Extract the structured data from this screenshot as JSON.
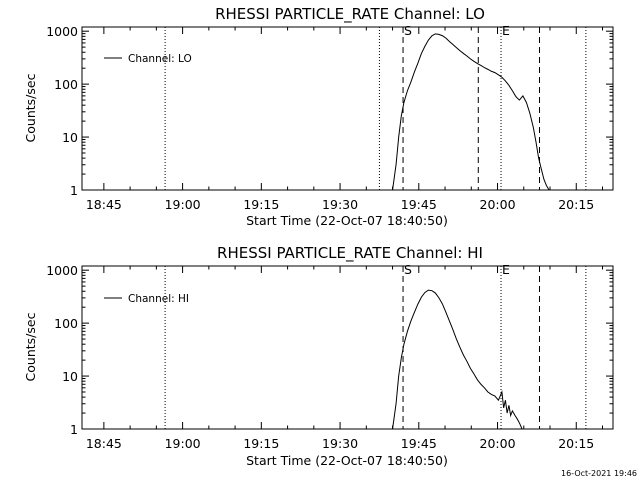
{
  "timestamp": "16-Oct-2021 19:46",
  "chart_data": [
    {
      "type": "line",
      "title": "RHESSI PARTICLE_RATE Channel: LO",
      "xlabel": "Start Time (22-Oct-07 18:40:50)",
      "ylabel": "Counts/sec",
      "y_scale": "log",
      "ylim": [
        1,
        1200
      ],
      "xlim": [
        "18:40:50",
        "20:22:00"
      ],
      "x_tick_labels": [
        "18:45",
        "19:00",
        "19:15",
        "19:30",
        "19:45",
        "20:00",
        "20:15"
      ],
      "y_tick_labels": [
        "1",
        "10",
        "100",
        "1000"
      ],
      "y_tick_values": [
        1,
        10,
        100,
        1000
      ],
      "legend": {
        "position": "top-left",
        "entries": [
          "Channel: LO"
        ]
      },
      "markers": [
        {
          "label": "S",
          "time": "19:42:00",
          "style": "dashed"
        },
        {
          "label": "",
          "time": "19:56:20",
          "style": "dashed"
        },
        {
          "label": "E",
          "time": "20:00:40",
          "style": "dotted"
        },
        {
          "label": "",
          "time": "20:08:00",
          "style": "dashed"
        },
        {
          "label": "",
          "time": "19:37:30",
          "style": "dotted"
        },
        {
          "label": "",
          "time": "18:56:40",
          "style": "dotted"
        },
        {
          "label": "",
          "time": "20:16:50",
          "style": "dotted"
        }
      ],
      "series": [
        {
          "name": "Channel: LO",
          "x": [
            "19:40:00",
            "19:40:40",
            "19:41:10",
            "19:41:40",
            "19:42:10",
            "19:42:50",
            "19:43:30",
            "19:44:10",
            "19:44:50",
            "19:45:30",
            "19:46:10",
            "19:46:50",
            "19:47:30",
            "19:48:10",
            "19:48:50",
            "19:49:30",
            "19:50:10",
            "19:50:50",
            "19:51:30",
            "19:52:10",
            "19:52:50",
            "19:53:30",
            "19:54:10",
            "19:54:50",
            "19:55:30",
            "19:56:10",
            "19:56:50",
            "19:57:30",
            "19:58:10",
            "19:58:50",
            "19:59:30",
            "20:00:10",
            "20:00:50",
            "20:01:30",
            "20:02:10",
            "20:02:50",
            "20:03:30",
            "20:04:10",
            "20:04:50",
            "20:05:30",
            "20:06:10",
            "20:06:50",
            "20:07:20",
            "20:07:50",
            "20:08:20",
            "20:08:50",
            "20:09:20",
            "20:09:50"
          ],
          "y": [
            1,
            3,
            10,
            25,
            45,
            75,
            110,
            170,
            250,
            380,
            520,
            680,
            820,
            890,
            870,
            820,
            740,
            640,
            560,
            490,
            430,
            380,
            340,
            300,
            270,
            245,
            225,
            205,
            190,
            175,
            165,
            150,
            135,
            115,
            95,
            75,
            58,
            50,
            60,
            45,
            28,
            15,
            8,
            4,
            2.5,
            1.6,
            1.2,
            1
          ]
        }
      ]
    },
    {
      "type": "line",
      "title": "RHESSI PARTICLE_RATE Channel: HI",
      "xlabel": "Start Time (22-Oct-07 18:40:50)",
      "ylabel": "Counts/sec",
      "y_scale": "log",
      "ylim": [
        1,
        1200
      ],
      "xlim": [
        "18:40:50",
        "20:22:00"
      ],
      "x_tick_labels": [
        "18:45",
        "19:00",
        "19:15",
        "19:30",
        "19:45",
        "20:00",
        "20:15"
      ],
      "y_tick_labels": [
        "1",
        "10",
        "100",
        "1000"
      ],
      "y_tick_values": [
        1,
        10,
        100,
        1000
      ],
      "legend": {
        "position": "top-left",
        "entries": [
          "Channel: HI"
        ]
      },
      "markers": [
        {
          "label": "S",
          "time": "19:42:00",
          "style": "dashed"
        },
        {
          "label": "E",
          "time": "20:00:40",
          "style": "dotted"
        },
        {
          "label": "",
          "time": "20:08:00",
          "style": "dashed"
        },
        {
          "label": "",
          "time": "18:56:40",
          "style": "dotted"
        },
        {
          "label": "",
          "time": "20:16:50",
          "style": "dotted"
        }
      ],
      "series": [
        {
          "name": "Channel: HI",
          "x": [
            "19:40:00",
            "19:40:40",
            "19:41:10",
            "19:41:40",
            "19:42:10",
            "19:42:50",
            "19:43:30",
            "19:44:10",
            "19:44:50",
            "19:45:30",
            "19:46:10",
            "19:46:50",
            "19:47:30",
            "19:48:10",
            "19:48:50",
            "19:49:30",
            "19:50:10",
            "19:50:50",
            "19:51:30",
            "19:52:10",
            "19:52:50",
            "19:53:30",
            "19:54:10",
            "19:54:50",
            "19:55:30",
            "19:56:10",
            "19:56:50",
            "19:57:30",
            "19:58:10",
            "19:58:50",
            "19:59:30",
            "20:00:10",
            "20:00:50",
            "20:01:10",
            "20:01:30",
            "20:01:50",
            "20:02:10",
            "20:02:30",
            "20:02:50",
            "20:03:20",
            "20:03:40",
            "20:04:00",
            "20:04:20",
            "20:04:40"
          ],
          "y": [
            1,
            3,
            10,
            22,
            40,
            70,
            110,
            160,
            230,
            310,
            380,
            420,
            410,
            370,
            300,
            230,
            160,
            110,
            75,
            50,
            35,
            25,
            19,
            14,
            11,
            8.5,
            7,
            6,
            5,
            4.5,
            4.2,
            3.5,
            5,
            2.5,
            3.5,
            2,
            2.8,
            1.8,
            2.2,
            1.8,
            1.6,
            1.4,
            1.2,
            1
          ]
        }
      ]
    }
  ]
}
